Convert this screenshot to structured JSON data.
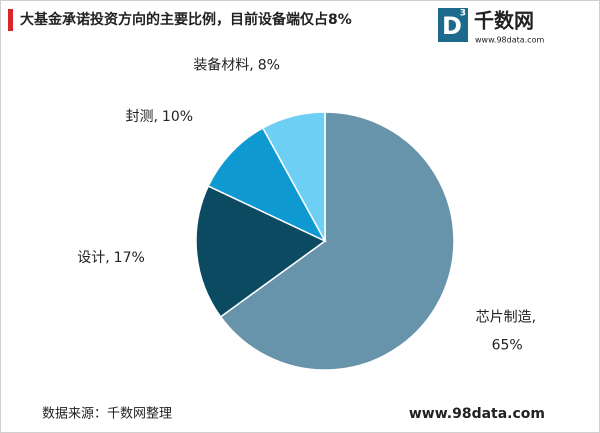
{
  "chart_data": {
    "type": "pie",
    "title": "大基金承诺投资方向的主要比例，目前设备端仅占8%",
    "categories": [
      "芯片制造,",
      "设计,",
      "封测,",
      "装备材料,"
    ],
    "values": [
      65,
      17,
      10,
      8
    ],
    "value_labels": [
      "65%",
      "17%",
      "10%",
      "8%"
    ],
    "colors": [
      "#6894ab",
      "#0c4a62",
      "#0f99d1",
      "#6ecff5"
    ],
    "source": "数据来源：千数网整理",
    "website": "www.98data.com"
  },
  "logo": {
    "letter": "D",
    "superscript": "3",
    "name": "千数网",
    "url": "www.98data.com"
  }
}
